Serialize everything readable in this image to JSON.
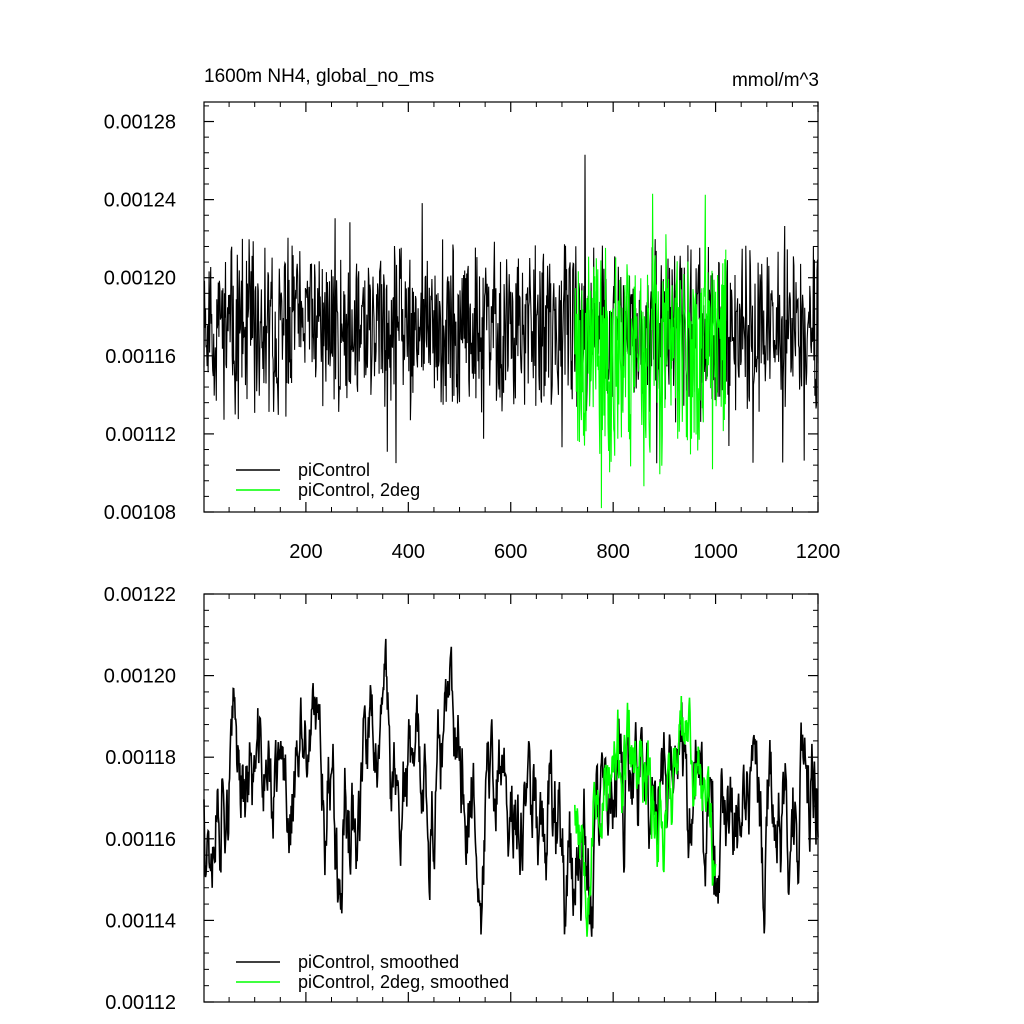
{
  "chart_data": [
    {
      "type": "line",
      "title": "1600m NH4, global_no_ms",
      "units": "mmol/m^3",
      "xlim": [
        1,
        1200
      ],
      "ylim": [
        0.00108,
        0.00129
      ],
      "x_ticks": [
        200,
        400,
        600,
        800,
        1000,
        1200
      ],
      "x_tick_labels": [
        "200",
        "400",
        "600",
        "800",
        "1000",
        "1200"
      ],
      "y_ticks": [
        0.00108,
        0.00112,
        0.00116,
        0.0012,
        0.00124,
        0.00128
      ],
      "y_tick_labels": [
        "0.00108",
        "0.00112",
        "0.00116",
        "0.00120",
        "0.00124",
        "0.00128"
      ],
      "legend_position": "bottom-left",
      "series": [
        {
          "name": "piControl",
          "color": "#000000",
          "x_range": [
            1,
            1200
          ],
          "mean": 0.001173,
          "amplitude": 2.2e-05,
          "min": 0.001105,
          "max": 0.001263,
          "seed": 11
        },
        {
          "name": "piControl, 2deg",
          "color": "#00ff00",
          "x_range": [
            725,
            1020
          ],
          "mean": 0.001172,
          "amplitude": 2.4e-05,
          "min": 0.001082,
          "max": 0.001243,
          "seed": 23
        }
      ]
    },
    {
      "type": "line",
      "xlim": [
        1,
        1200
      ],
      "ylim": [
        0.00112,
        0.00122
      ],
      "x_ticks": [
        200,
        400,
        600,
        800,
        1000,
        1200
      ],
      "x_tick_labels": [],
      "y_ticks": [
        0.00112,
        0.00114,
        0.00116,
        0.00118,
        0.0012,
        0.00122
      ],
      "y_tick_labels": [
        "0.00112",
        "0.00114",
        "0.00116",
        "0.00118",
        "0.00120",
        "0.00122"
      ],
      "legend_position": "bottom-left",
      "series": [
        {
          "name": "piControl, smoothed",
          "color": "#000000",
          "x_range": [
            1,
            1200
          ],
          "mean": 0.001174,
          "amplitude": 7.5e-06,
          "min": 0.001136,
          "max": 0.001209,
          "seed": 37
        },
        {
          "name": "piControl, 2deg, smoothed",
          "color": "#00ff00",
          "x_range": [
            725,
            1000
          ],
          "mean": 0.001174,
          "amplitude": 8e-06,
          "min": 0.001136,
          "max": 0.001195,
          "seed": 53
        }
      ]
    }
  ]
}
